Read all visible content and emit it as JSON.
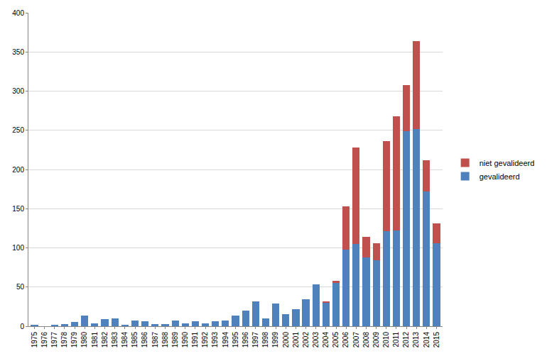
{
  "chart_data": {
    "type": "bar",
    "stacked": true,
    "grid": true,
    "legend": "right",
    "categories": [
      "1975",
      "1976",
      "1977",
      "1978",
      "1979",
      "1980",
      "1981",
      "1982",
      "1983",
      "1984",
      "1985",
      "1986",
      "1987",
      "1988",
      "1989",
      "1990",
      "1991",
      "1992",
      "1993",
      "1994",
      "1995",
      "1996",
      "1997",
      "1998",
      "1999",
      "2000",
      "2001",
      "2002",
      "2003",
      "2004",
      "2005",
      "2006",
      "2007",
      "2008",
      "2009",
      "2010",
      "2011",
      "2012",
      "2013",
      "2014",
      "2015"
    ],
    "series": [
      {
        "name": "gevalideerd",
        "color": "#4f81bd",
        "values": [
          2,
          0,
          1,
          3,
          5,
          14,
          4,
          9,
          10,
          2,
          7,
          6,
          3,
          3,
          7,
          4,
          6,
          4,
          6,
          7,
          14,
          20,
          32,
          10,
          29,
          15,
          22,
          34,
          53,
          30,
          55,
          98,
          105,
          88,
          84,
          121,
          122,
          249,
          252,
          172,
          106
        ]
      },
      {
        "name": "niet gevalideerd",
        "color": "#c0504d",
        "values": [
          0,
          0,
          0,
          0,
          0,
          0,
          0,
          0,
          0,
          0,
          0,
          0,
          0,
          0,
          0,
          0,
          0,
          0,
          0,
          0,
          0,
          0,
          0,
          0,
          0,
          0,
          0,
          0,
          0,
          2,
          3,
          55,
          123,
          26,
          22,
          115,
          146,
          59,
          112,
          40,
          25
        ]
      }
    ],
    "ylim": [
      0,
      400
    ],
    "yticks": [
      0,
      50,
      100,
      150,
      200,
      250,
      300,
      350,
      400
    ]
  }
}
